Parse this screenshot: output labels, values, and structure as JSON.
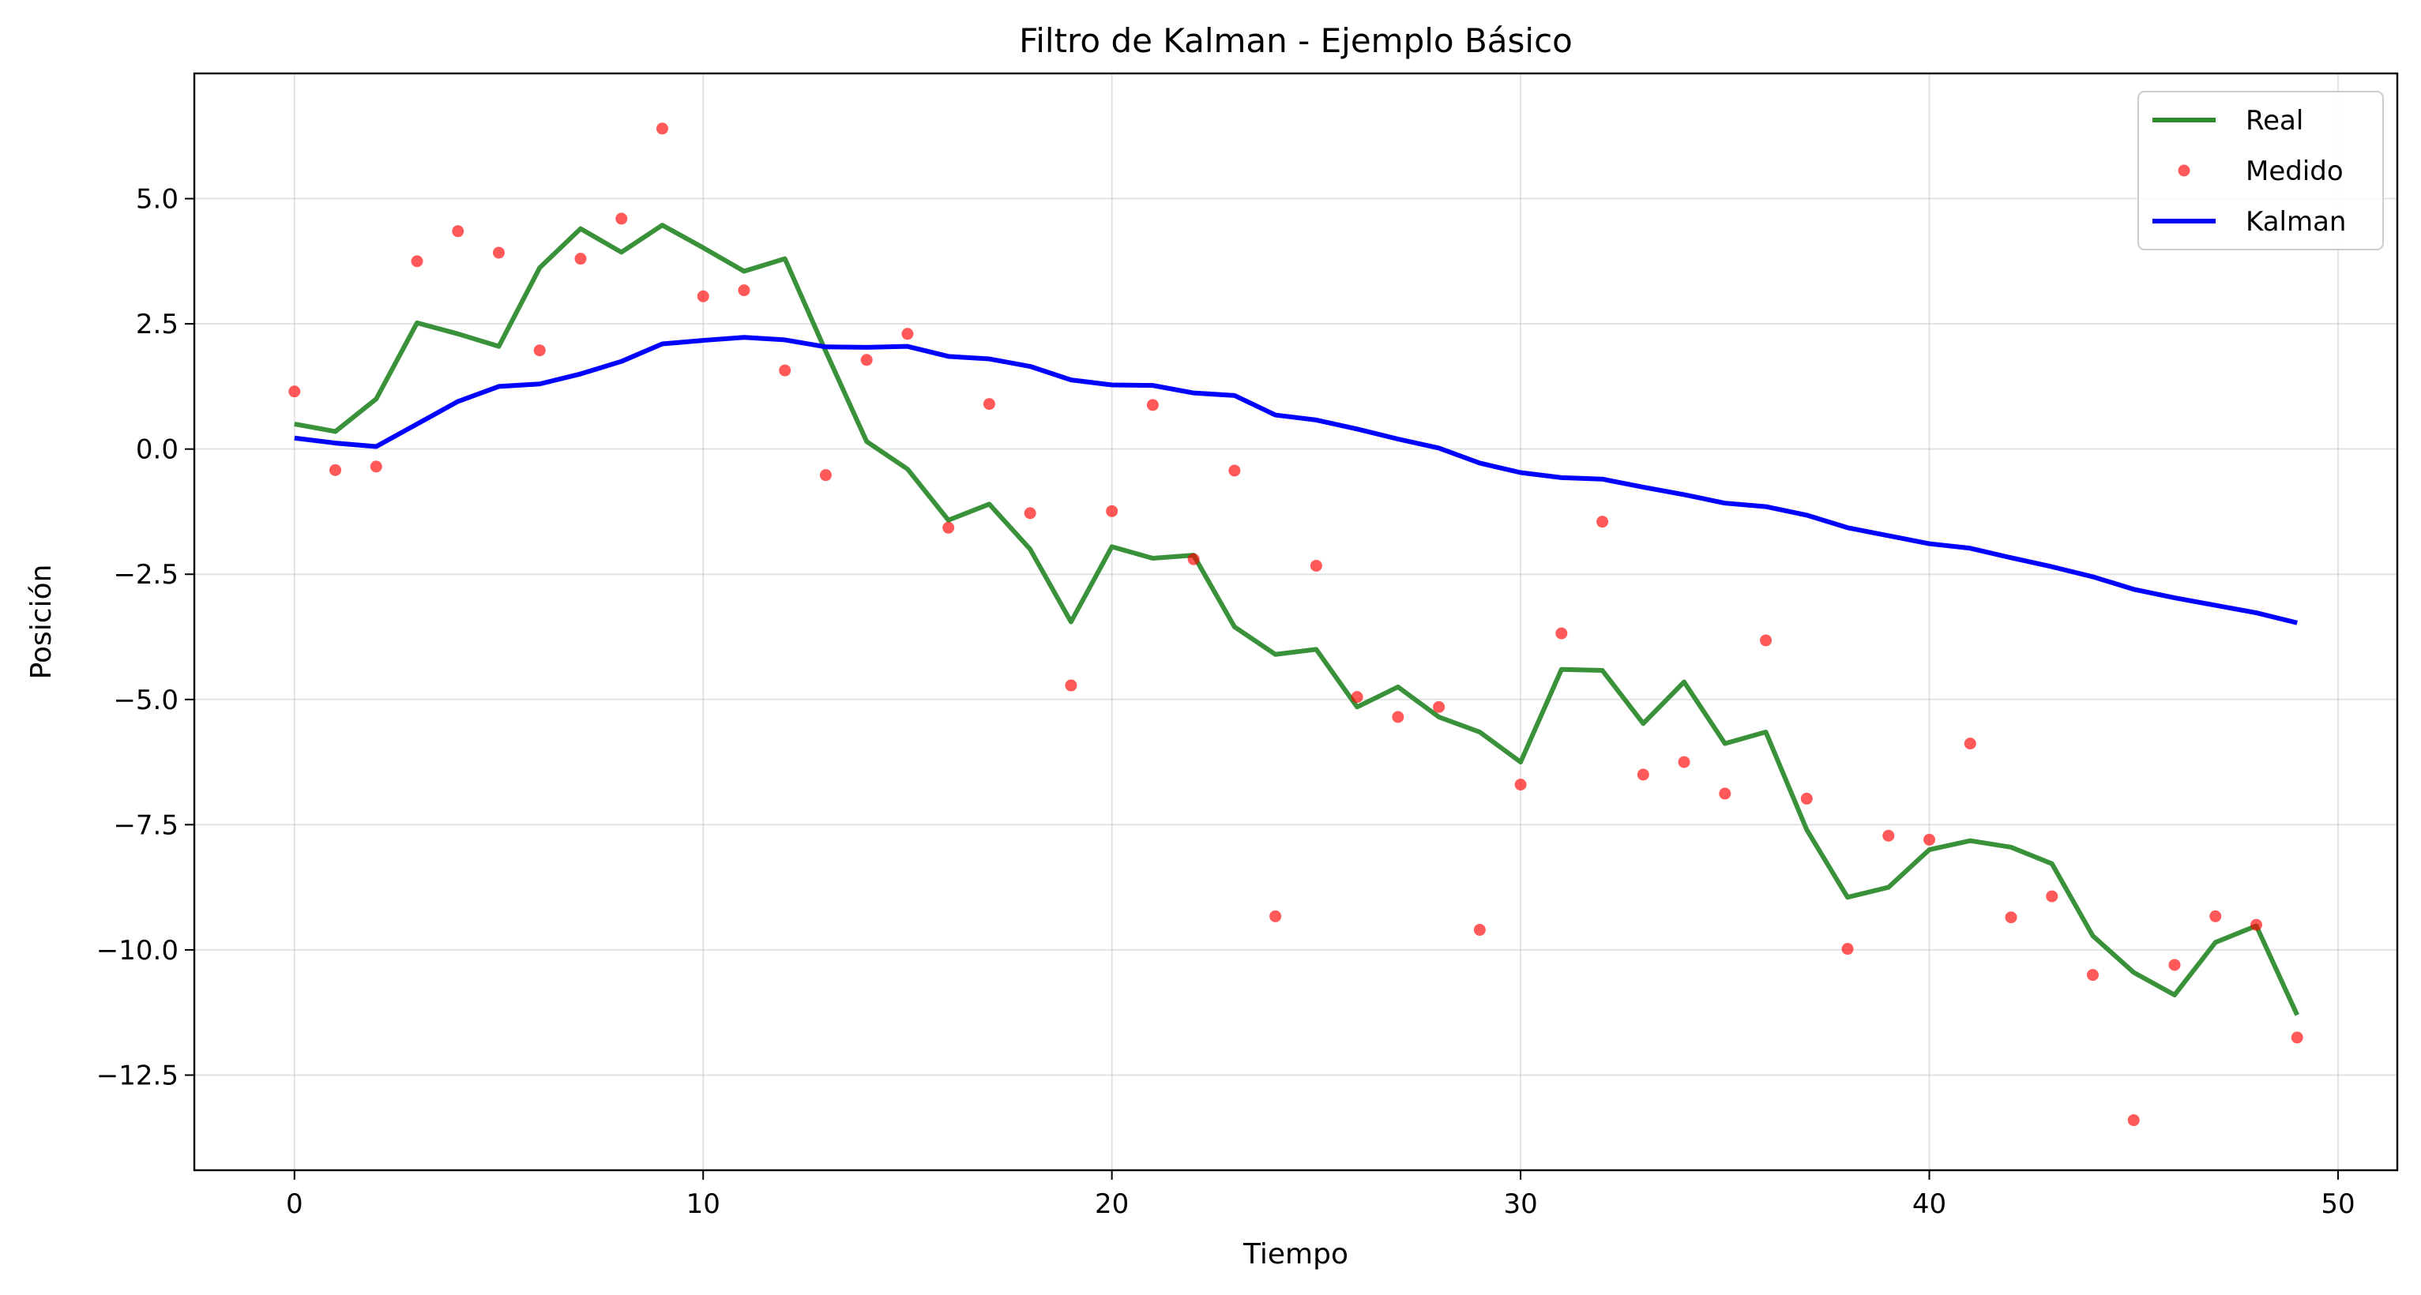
{
  "chart_data": {
    "type": "line",
    "title": "Filtro de Kalman - Ejemplo Básico",
    "xlabel": "Tiempo",
    "ylabel": "Posición",
    "xlim": [
      -2.45,
      51.45
    ],
    "ylim": [
      -14.4,
      7.5
    ],
    "xticks": [
      0,
      10,
      20,
      30,
      40,
      50
    ],
    "xtick_labels": [
      "0",
      "10",
      "20",
      "30",
      "40",
      "50"
    ],
    "yticks": [
      5.0,
      2.5,
      0.0,
      -2.5,
      -5.0,
      -7.5,
      -10.0,
      -12.5
    ],
    "ytick_labels": [
      "5.0",
      "2.5",
      "0.0",
      "−2.5",
      "−5.0",
      "−7.5",
      "−10.0",
      "−12.5"
    ],
    "grid": true,
    "legend_position": "top-right",
    "colors": {
      "real": "#2e8b2e",
      "medido": "#ff0000",
      "kalman": "#0000ff"
    },
    "x": [
      0,
      1,
      2,
      3,
      4,
      5,
      6,
      7,
      8,
      9,
      10,
      11,
      12,
      13,
      14,
      15,
      16,
      17,
      18,
      19,
      20,
      21,
      22,
      23,
      24,
      25,
      26,
      27,
      28,
      29,
      30,
      31,
      32,
      33,
      34,
      35,
      36,
      37,
      38,
      39,
      40,
      41,
      42,
      43,
      44,
      45,
      46,
      47,
      48,
      49
    ],
    "series": [
      {
        "name": "Real",
        "style": "line",
        "values": [
          0.5,
          0.35,
          1.0,
          2.52,
          2.3,
          2.05,
          3.62,
          4.4,
          3.93,
          4.47,
          4.02,
          3.55,
          3.8,
          1.95,
          0.15,
          -0.4,
          -1.42,
          -1.1,
          -2.0,
          -3.45,
          -1.95,
          -2.18,
          -2.12,
          -3.55,
          -4.1,
          -4.0,
          -5.15,
          -4.75,
          -5.35,
          -5.65,
          -6.25,
          -4.4,
          -4.42,
          -5.48,
          -4.65,
          -5.88,
          -5.65,
          -7.6,
          -8.95,
          -8.75,
          -8.0,
          -7.82,
          -7.95,
          -8.28,
          -9.72,
          -10.45,
          -10.9,
          -9.85,
          -9.52,
          -11.3
        ]
      },
      {
        "name": "Medido",
        "style": "scatter",
        "values": [
          1.15,
          -0.42,
          -0.35,
          3.75,
          4.35,
          3.92,
          1.97,
          3.8,
          4.6,
          6.4,
          3.05,
          3.17,
          1.57,
          -0.52,
          1.78,
          2.3,
          -1.57,
          0.9,
          -1.28,
          -4.72,
          -1.24,
          0.88,
          -2.2,
          -0.43,
          -9.33,
          -2.33,
          -4.95,
          -5.35,
          -5.15,
          -9.6,
          -6.7,
          -3.68,
          -1.45,
          -6.5,
          -6.25,
          -6.88,
          -3.82,
          -6.98,
          -9.98,
          -7.72,
          -7.8,
          -5.88,
          -9.35,
          -8.93,
          -10.5,
          -13.4,
          -10.3,
          -9.33,
          -9.5,
          -11.75
        ]
      },
      {
        "name": "Kalman",
        "style": "line",
        "values": [
          0.22,
          0.12,
          0.05,
          0.5,
          0.95,
          1.25,
          1.3,
          1.5,
          1.75,
          2.1,
          2.17,
          2.23,
          2.18,
          2.04,
          2.03,
          2.05,
          1.85,
          1.8,
          1.65,
          1.38,
          1.28,
          1.27,
          1.12,
          1.07,
          0.68,
          0.58,
          0.4,
          0.2,
          0.02,
          -0.28,
          -0.47,
          -0.57,
          -0.6,
          -0.76,
          -0.91,
          -1.08,
          -1.15,
          -1.32,
          -1.57,
          -1.73,
          -1.89,
          -1.98,
          -2.17,
          -2.35,
          -2.55,
          -2.8,
          -2.97,
          -3.12,
          -3.27,
          -3.47
        ]
      }
    ]
  }
}
